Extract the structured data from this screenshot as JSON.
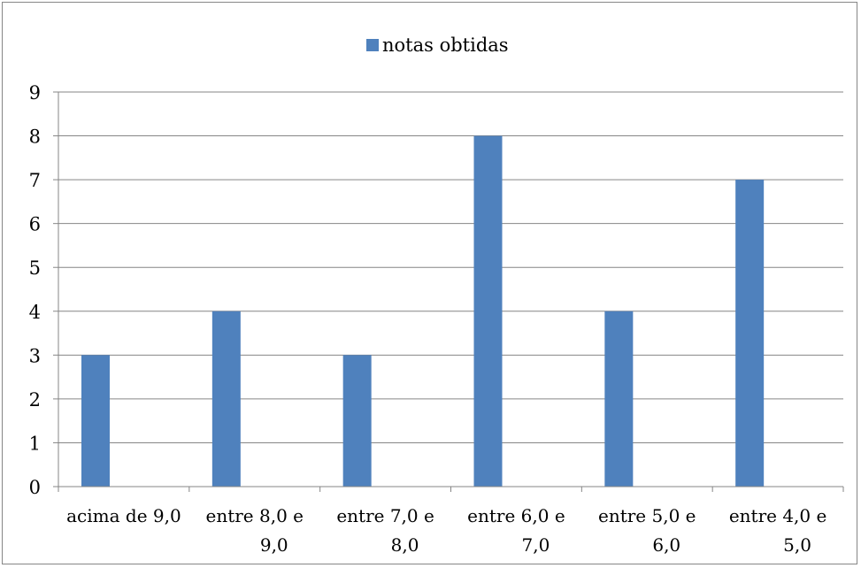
{
  "chart_data": {
    "type": "bar",
    "categories": [
      [
        "acima de 9,0"
      ],
      [
        "entre 8,0 e",
        "9,0"
      ],
      [
        "entre 7,0 e",
        "8,0"
      ],
      [
        "entre 6,0 e",
        "7,0"
      ],
      [
        "entre 5,0 e",
        "6,0"
      ],
      [
        "entre 4,0 e",
        "5,0"
      ]
    ],
    "series": [
      {
        "name": "notas obtidas",
        "values": [
          3,
          4,
          3,
          8,
          4,
          7
        ],
        "color": "#4f81bd"
      }
    ],
    "ylim": [
      0,
      9
    ],
    "yticks": [
      "0",
      "1",
      "2",
      "3",
      "4",
      "5",
      "6",
      "7",
      "8",
      "9"
    ],
    "grid": true,
    "legend": "top-center",
    "gridline_color": "#868686",
    "axis_color": "#868686"
  }
}
